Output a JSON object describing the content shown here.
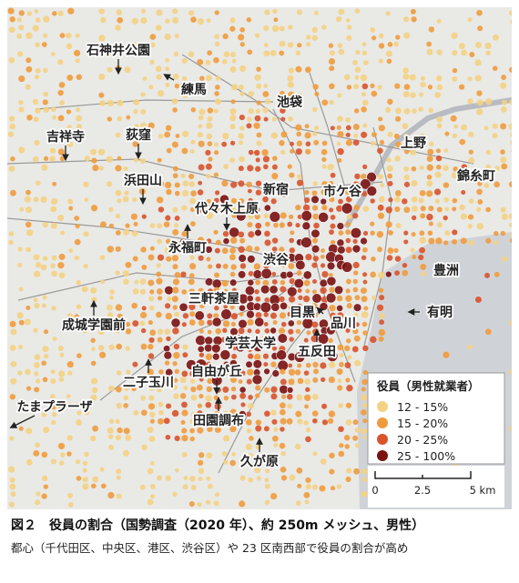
{
  "map": {
    "places": [
      "石神井公園",
      "練馬",
      "池袋",
      "吉祥寺",
      "荻窪",
      "上野",
      "錦糸町",
      "浜田山",
      "新宿",
      "市ケ谷",
      "代々木上原",
      "永福町",
      "渋谷",
      "豊洲",
      "三軒茶屋",
      "有明",
      "成城学園前",
      "目黒",
      "品川",
      "学芸大学",
      "五反田",
      "自由が丘",
      "二子玉川",
      "たまプラーザ",
      "田園調布",
      "久が原"
    ],
    "legend": {
      "title": "役員（男性就業者）",
      "items": [
        {
          "label": "12 - 15%",
          "color": "#f4d283"
        },
        {
          "label": "15 - 20%",
          "color": "#ef9b3c"
        },
        {
          "label": "20 - 25%",
          "color": "#d8522a"
        },
        {
          "label": "25 - 100%",
          "color": "#7a1212"
        }
      ]
    },
    "scale": {
      "ticks": [
        "0",
        "2.5",
        "5 km"
      ]
    }
  },
  "caption": {
    "title": "図２　役員の割合（国勢調査（2020 年）、約 250m メッシュ、男性）",
    "subtitle": "都心（千代田区、中央区、港区、渋谷区）や 23 区南西部で役員の割合が高め"
  }
}
